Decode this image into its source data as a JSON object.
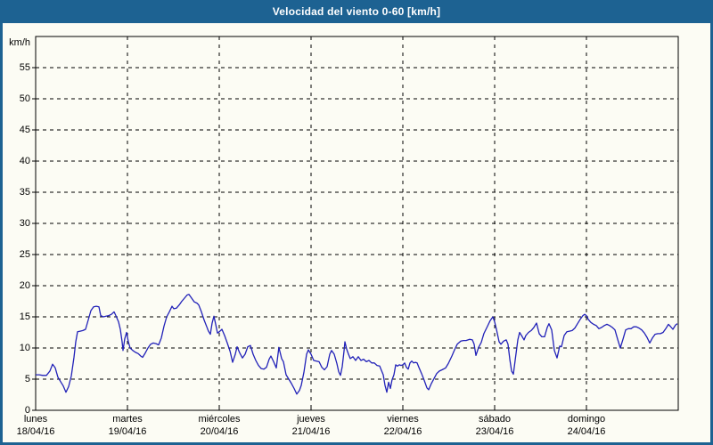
{
  "window": {
    "title": "Velocidad del viento 0-60 [km/h]"
  },
  "colors": {
    "titlebar_bg": "#1d6292",
    "frame": "#1d6292",
    "background": "#fcfcf4",
    "line": "#2121b8",
    "grid": "#000000",
    "text": "#000000",
    "title_text": "#ffffff"
  },
  "chart_data": {
    "type": "line",
    "title": "Velocidad del viento 0-60 [km/h]",
    "ylabel": "km/h",
    "ylim": [
      0,
      60
    ],
    "yticks": [
      0,
      5,
      10,
      15,
      20,
      25,
      30,
      35,
      40,
      45,
      50,
      55
    ],
    "xlim_days": [
      0,
      7
    ],
    "grid": "dashed",
    "legend_position": "none",
    "x_axis_days": [
      {
        "name": "lunes",
        "date": "18/04/16"
      },
      {
        "name": "martes",
        "date": "19/04/16"
      },
      {
        "name": "miércoles",
        "date": "20/04/16"
      },
      {
        "name": "jueves",
        "date": "21/04/16"
      },
      {
        "name": "viernes",
        "date": "22/04/16"
      },
      {
        "name": "sábado",
        "date": "23/04/16"
      },
      {
        "name": "domingo",
        "date": "24/04/16"
      }
    ],
    "series": [
      {
        "name": "Velocidad del viento",
        "unit": "km/h",
        "color": "#2121b8",
        "points": [
          [
            0,
            5.7
          ],
          [
            0.039,
            5.7
          ],
          [
            0.078,
            5.6
          ],
          [
            0.117,
            5.6
          ],
          [
            0.155,
            6.3
          ],
          [
            0.184,
            7.4
          ],
          [
            0.214,
            6.8
          ],
          [
            0.243,
            5.3
          ],
          [
            0.272,
            4.6
          ],
          [
            0.301,
            3.9
          ],
          [
            0.33,
            2.9
          ],
          [
            0.359,
            3.8
          ],
          [
            0.388,
            5.5
          ],
          [
            0.417,
            8.5
          ],
          [
            0.437,
            11
          ],
          [
            0.456,
            12.6
          ],
          [
            0.485,
            12.7
          ],
          [
            0.515,
            12.8
          ],
          [
            0.544,
            13
          ],
          [
            0.573,
            14.5
          ],
          [
            0.602,
            16
          ],
          [
            0.631,
            16.6
          ],
          [
            0.66,
            16.7
          ],
          [
            0.689,
            16.6
          ],
          [
            0.709,
            15.2
          ],
          [
            0.738,
            15
          ],
          [
            0.767,
            15.1
          ],
          [
            0.796,
            15.2
          ],
          [
            0.825,
            15.4
          ],
          [
            0.854,
            15.8
          ],
          [
            0.874,
            15.2
          ],
          [
            0.903,
            14.2
          ],
          [
            0.922,
            13
          ],
          [
            0.942,
            11
          ],
          [
            0.951,
            9.6
          ],
          [
            0.971,
            11.5
          ],
          [
            0.99,
            12.5
          ],
          [
            1.01,
            11
          ],
          [
            1.029,
            10
          ],
          [
            1.058,
            9.6
          ],
          [
            1.087,
            9.3
          ],
          [
            1.117,
            9.1
          ],
          [
            1.146,
            8.7
          ],
          [
            1.165,
            8.5
          ],
          [
            1.194,
            9.2
          ],
          [
            1.223,
            10
          ],
          [
            1.252,
            10.6
          ],
          [
            1.282,
            10.8
          ],
          [
            1.311,
            10.7
          ],
          [
            1.34,
            10.5
          ],
          [
            1.369,
            11.6
          ],
          [
            1.398,
            13.5
          ],
          [
            1.427,
            15
          ],
          [
            1.456,
            15.8
          ],
          [
            1.485,
            16.7
          ],
          [
            1.505,
            16.3
          ],
          [
            1.534,
            16.4
          ],
          [
            1.563,
            16.9
          ],
          [
            1.592,
            17.5
          ],
          [
            1.621,
            18
          ],
          [
            1.65,
            18.5
          ],
          [
            1.67,
            18.6
          ],
          [
            1.699,
            18
          ],
          [
            1.728,
            17.4
          ],
          [
            1.757,
            17.2
          ],
          [
            1.777,
            16.9
          ],
          [
            1.806,
            15.8
          ],
          [
            1.835,
            14.5
          ],
          [
            1.864,
            13.4
          ],
          [
            1.883,
            12.7
          ],
          [
            1.903,
            12.2
          ],
          [
            1.922,
            14
          ],
          [
            1.942,
            15.1
          ],
          [
            1.961,
            13.8
          ],
          [
            1.981,
            12.4
          ],
          [
            2,
            12.6
          ],
          [
            2.029,
            13
          ],
          [
            2.058,
            12
          ],
          [
            2.087,
            10.8
          ],
          [
            2.117,
            9.5
          ],
          [
            2.146,
            7.7
          ],
          [
            2.175,
            9
          ],
          [
            2.194,
            10.2
          ],
          [
            2.223,
            9.2
          ],
          [
            2.252,
            8.4
          ],
          [
            2.282,
            9
          ],
          [
            2.311,
            10.2
          ],
          [
            2.34,
            10.4
          ],
          [
            2.369,
            9
          ],
          [
            2.398,
            8
          ],
          [
            2.427,
            7.2
          ],
          [
            2.456,
            6.7
          ],
          [
            2.485,
            6.6
          ],
          [
            2.515,
            6.9
          ],
          [
            2.544,
            8.2
          ],
          [
            2.563,
            8.7
          ],
          [
            2.592,
            7.8
          ],
          [
            2.621,
            6.8
          ],
          [
            2.65,
            10.1
          ],
          [
            2.68,
            8.3
          ],
          [
            2.699,
            7.8
          ],
          [
            2.728,
            5.7
          ],
          [
            2.757,
            5
          ],
          [
            2.786,
            4.3
          ],
          [
            2.816,
            3.5
          ],
          [
            2.845,
            2.6
          ],
          [
            2.874,
            3.2
          ],
          [
            2.893,
            4
          ],
          [
            2.922,
            6.1
          ],
          [
            2.951,
            9
          ],
          [
            2.971,
            9.7
          ],
          [
            3,
            9
          ],
          [
            3.029,
            8
          ],
          [
            3.058,
            7.9
          ],
          [
            3.087,
            7.8
          ],
          [
            3.117,
            6.9
          ],
          [
            3.146,
            6.5
          ],
          [
            3.175,
            7
          ],
          [
            3.204,
            9
          ],
          [
            3.223,
            9.6
          ],
          [
            3.252,
            9
          ],
          [
            3.282,
            7.5
          ],
          [
            3.301,
            6.2
          ],
          [
            3.32,
            5.6
          ],
          [
            3.34,
            7
          ],
          [
            3.359,
            9.5
          ],
          [
            3.369,
            11
          ],
          [
            3.388,
            9.8
          ],
          [
            3.408,
            9
          ],
          [
            3.427,
            8.3
          ],
          [
            3.456,
            8.6
          ],
          [
            3.485,
            8
          ],
          [
            3.515,
            8.6
          ],
          [
            3.544,
            8
          ],
          [
            3.573,
            8.2
          ],
          [
            3.602,
            7.8
          ],
          [
            3.631,
            8
          ],
          [
            3.66,
            7.6
          ],
          [
            3.689,
            7.6
          ],
          [
            3.718,
            7.2
          ],
          [
            3.748,
            7.1
          ],
          [
            3.767,
            6.4
          ],
          [
            3.786,
            5.7
          ],
          [
            3.806,
            4
          ],
          [
            3.825,
            2.9
          ],
          [
            3.845,
            4.5
          ],
          [
            3.864,
            3.5
          ],
          [
            3.883,
            4.9
          ],
          [
            3.903,
            5.7
          ],
          [
            3.922,
            7.3
          ],
          [
            3.942,
            7.1
          ],
          [
            3.961,
            7.3
          ],
          [
            3.981,
            7.2
          ],
          [
            4,
            7.3
          ],
          [
            4.019,
            7.6
          ],
          [
            4.039,
            6.9
          ],
          [
            4.058,
            6.6
          ],
          [
            4.078,
            7.6
          ],
          [
            4.097,
            7.9
          ],
          [
            4.117,
            7.6
          ],
          [
            4.136,
            7.7
          ],
          [
            4.155,
            7.6
          ],
          [
            4.175,
            6.9
          ],
          [
            4.204,
            5.9
          ],
          [
            4.233,
            4.8
          ],
          [
            4.262,
            3.6
          ],
          [
            4.282,
            3.3
          ],
          [
            4.311,
            4.3
          ],
          [
            4.34,
            5.1
          ],
          [
            4.369,
            5.9
          ],
          [
            4.398,
            6.3
          ],
          [
            4.427,
            6.5
          ],
          [
            4.466,
            6.8
          ],
          [
            4.495,
            7.5
          ],
          [
            4.534,
            8.7
          ],
          [
            4.563,
            9.7
          ],
          [
            4.592,
            10.6
          ],
          [
            4.631,
            11.1
          ],
          [
            4.66,
            11.2
          ],
          [
            4.689,
            11.2
          ],
          [
            4.728,
            11.4
          ],
          [
            4.757,
            11.3
          ],
          [
            4.777,
            10.6
          ],
          [
            4.796,
            8.8
          ],
          [
            4.825,
            10.1
          ],
          [
            4.854,
            10.9
          ],
          [
            4.883,
            12.3
          ],
          [
            4.922,
            13.5
          ],
          [
            4.951,
            14.4
          ],
          [
            4.981,
            15
          ],
          [
            5,
            14.2
          ],
          [
            5.019,
            13
          ],
          [
            5.049,
            11
          ],
          [
            5.068,
            10.6
          ],
          [
            5.097,
            11.1
          ],
          [
            5.126,
            11.3
          ],
          [
            5.146,
            10.6
          ],
          [
            5.165,
            8.2
          ],
          [
            5.184,
            6.3
          ],
          [
            5.204,
            5.8
          ],
          [
            5.223,
            8
          ],
          [
            5.252,
            11.3
          ],
          [
            5.272,
            12.5
          ],
          [
            5.301,
            11.8
          ],
          [
            5.32,
            11.3
          ],
          [
            5.34,
            12
          ],
          [
            5.369,
            12.5
          ],
          [
            5.398,
            12.8
          ],
          [
            5.427,
            13.3
          ],
          [
            5.456,
            14
          ],
          [
            5.485,
            12.3
          ],
          [
            5.515,
            11.8
          ],
          [
            5.544,
            11.8
          ],
          [
            5.573,
            13.3
          ],
          [
            5.592,
            13.9
          ],
          [
            5.621,
            12.9
          ],
          [
            5.65,
            9.6
          ],
          [
            5.68,
            8.4
          ],
          [
            5.709,
            10.3
          ],
          [
            5.728,
            10.2
          ],
          [
            5.757,
            12
          ],
          [
            5.786,
            12.6
          ],
          [
            5.816,
            12.7
          ],
          [
            5.845,
            12.8
          ],
          [
            5.874,
            13.2
          ],
          [
            5.903,
            13.9
          ],
          [
            5.932,
            14.6
          ],
          [
            5.961,
            15.2
          ],
          [
            5.981,
            15.4
          ],
          [
            6,
            15.2
          ],
          [
            6.019,
            14.6
          ],
          [
            6.049,
            14.1
          ],
          [
            6.078,
            13.8
          ],
          [
            6.107,
            13.6
          ],
          [
            6.136,
            13.1
          ],
          [
            6.165,
            13.3
          ],
          [
            6.194,
            13.6
          ],
          [
            6.223,
            13.8
          ],
          [
            6.252,
            13.6
          ],
          [
            6.282,
            13.3
          ],
          [
            6.311,
            12.9
          ],
          [
            6.34,
            11.4
          ],
          [
            6.369,
            10
          ],
          [
            6.398,
            11.4
          ],
          [
            6.427,
            12.9
          ],
          [
            6.456,
            13.1
          ],
          [
            6.485,
            13.1
          ],
          [
            6.515,
            13.4
          ],
          [
            6.544,
            13.4
          ],
          [
            6.573,
            13.2
          ],
          [
            6.602,
            12.9
          ],
          [
            6.631,
            12.4
          ],
          [
            6.66,
            11.7
          ],
          [
            6.689,
            10.8
          ],
          [
            6.718,
            11.6
          ],
          [
            6.748,
            12.2
          ],
          [
            6.777,
            12.3
          ],
          [
            6.806,
            12.3
          ],
          [
            6.835,
            12.5
          ],
          [
            6.864,
            13.1
          ],
          [
            6.893,
            13.8
          ],
          [
            6.913,
            13.5
          ],
          [
            6.942,
            13
          ],
          [
            6.971,
            13.7
          ],
          [
            6.99,
            13.9
          ]
        ]
      }
    ]
  }
}
